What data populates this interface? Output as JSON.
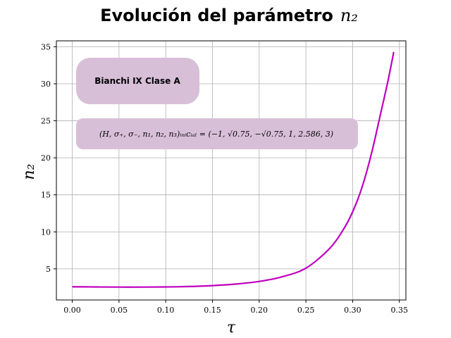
{
  "chart_data": {
    "type": "line",
    "title": "Evolución del parámetro",
    "title_math": "n₂",
    "xlabel": "τ",
    "ylabel": "n₂",
    "xlim": [
      -0.017,
      0.357
    ],
    "ylim": [
      0.8,
      35.8
    ],
    "xticks": [
      0.0,
      0.05,
      0.1,
      0.15,
      0.2,
      0.25,
      0.3,
      0.35
    ],
    "xtick_labels": [
      "0.00",
      "0.05",
      "0.10",
      "0.15",
      "0.20",
      "0.25",
      "0.30",
      "0.35"
    ],
    "yticks": [
      5,
      10,
      15,
      20,
      25,
      30,
      35
    ],
    "ytick_labels": [
      "5",
      "10",
      "15",
      "20",
      "25",
      "30",
      "35"
    ],
    "grid": true,
    "line_color": "#bf00bf",
    "series": [
      {
        "x": [
          0.0,
          0.025,
          0.05,
          0.075,
          0.1,
          0.125,
          0.15,
          0.175,
          0.2,
          0.225,
          0.25,
          0.275,
          0.29,
          0.3,
          0.31,
          0.32,
          0.33,
          0.338,
          0.344
        ],
        "values": [
          2.586,
          2.56,
          2.54,
          2.54,
          2.56,
          2.62,
          2.74,
          2.95,
          3.3,
          3.95,
          5.1,
          7.7,
          10.3,
          12.7,
          16.0,
          20.5,
          26.0,
          30.5,
          34.3
        ]
      }
    ],
    "annotations": {
      "label1": "Bianchi IX Clase A",
      "label2": "(H, σ₊, σ₋, n₁, n₂, n₃)ᵢₙᵢcᵢₐₗ = (−1, √0.75, −√0.75, 1, 2.586, 3)"
    },
    "box_color": "#d8bfd8"
  }
}
